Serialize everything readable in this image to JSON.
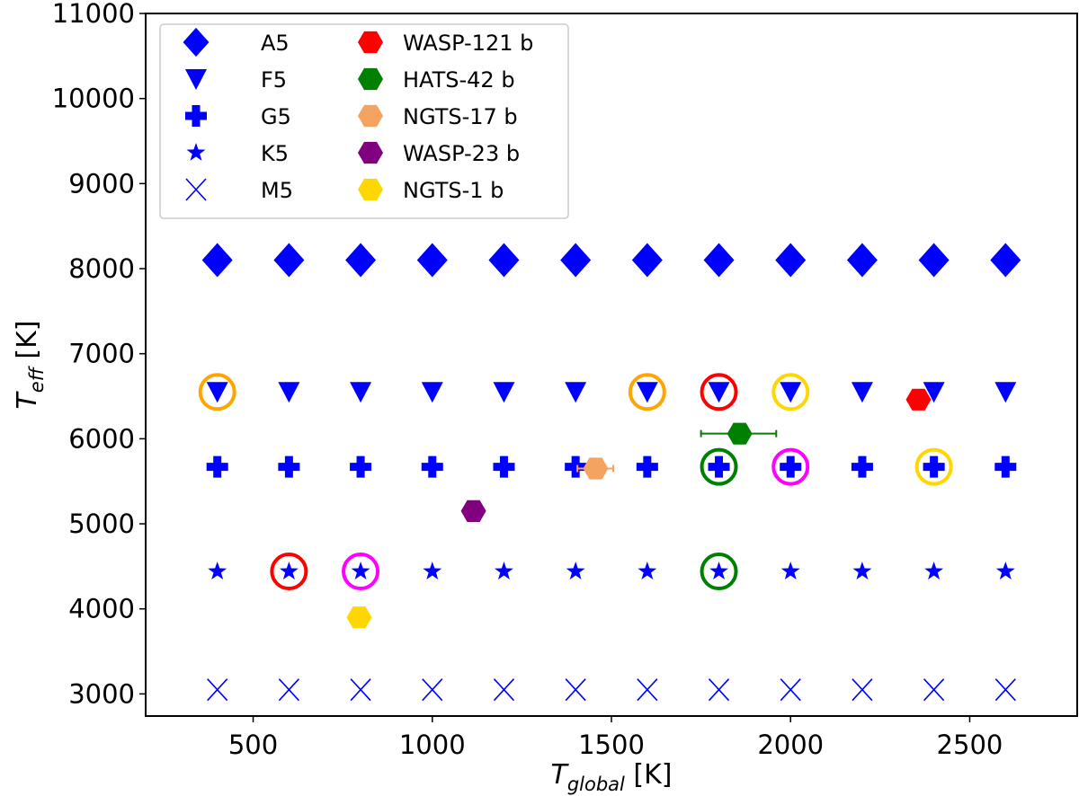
{
  "chart_data": {
    "type": "scatter",
    "xlabel": {
      "main": "T",
      "sub": "global",
      "unit": " [K]"
    },
    "ylabel": {
      "main": "T",
      "sub": "eff",
      "unit": " [K]"
    },
    "xlim": [
      200,
      2800
    ],
    "ylim": [
      2740,
      11000
    ],
    "xticks": [
      500,
      1000,
      1500,
      2000,
      2500
    ],
    "yticks": [
      3000,
      4000,
      5000,
      6000,
      7000,
      8000,
      9000,
      10000,
      11000
    ],
    "grid": false,
    "legend_position": "top-left",
    "grid_x": [
      400,
      600,
      800,
      1000,
      1200,
      1400,
      1600,
      1800,
      2000,
      2200,
      2400,
      2600
    ],
    "stellar_series": [
      {
        "name": "A5",
        "marker": "diamond",
        "teff": 8100,
        "color": "#0000ff"
      },
      {
        "name": "F5",
        "marker": "triangle-down",
        "teff": 6550,
        "color": "#0000ff"
      },
      {
        "name": "G5",
        "marker": "plus",
        "teff": 5670,
        "color": "#0000ff"
      },
      {
        "name": "K5",
        "marker": "star",
        "teff": 4440,
        "color": "#0000ff"
      },
      {
        "name": "M5",
        "marker": "x",
        "teff": 3050,
        "color": "#0000ff"
      }
    ],
    "planets": [
      {
        "name": "WASP-121 b",
        "x": 2357,
        "y": 6460,
        "xerr": [
          0,
          0
        ],
        "color": "#ff0000"
      },
      {
        "name": "HATS-42 b",
        "x": 1858,
        "y": 6060,
        "xerr": [
          108,
          102
        ],
        "color": "#008000"
      },
      {
        "name": "NGTS-17 b",
        "x": 1456,
        "y": 5650,
        "xerr": [
          51,
          49
        ],
        "color": "#f4a460"
      },
      {
        "name": "WASP-23 b",
        "x": 1115,
        "y": 5150,
        "xerr": [
          0,
          0
        ],
        "color": "#800080"
      },
      {
        "name": "NGTS-1 b",
        "x": 796,
        "y": 3900,
        "xerr": [
          0,
          0
        ],
        "color": "#ffd700"
      }
    ],
    "highlight_circles": [
      {
        "x": 400,
        "y": 6550,
        "color": "#ffa500"
      },
      {
        "x": 1600,
        "y": 6550,
        "color": "#ffa500"
      },
      {
        "x": 1800,
        "y": 6550,
        "color": "#ff0000"
      },
      {
        "x": 2000,
        "y": 6550,
        "color": "#ffd700"
      },
      {
        "x": 1800,
        "y": 5670,
        "color": "#008000"
      },
      {
        "x": 2000,
        "y": 5670,
        "color": "#ff00ff"
      },
      {
        "x": 2400,
        "y": 5670,
        "color": "#ffd700"
      },
      {
        "x": 600,
        "y": 4440,
        "color": "#ff0000"
      },
      {
        "x": 800,
        "y": 4440,
        "color": "#ff00ff"
      },
      {
        "x": 1800,
        "y": 4440,
        "color": "#008000"
      }
    ]
  }
}
